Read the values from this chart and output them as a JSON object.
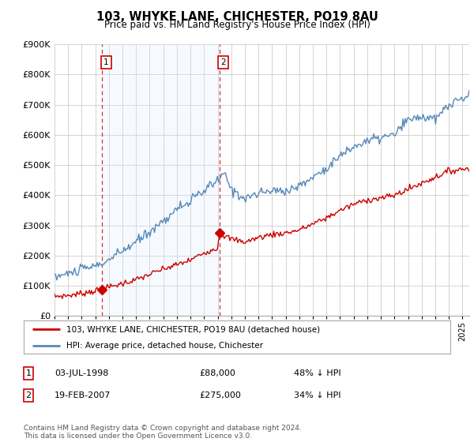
{
  "title": "103, WHYKE LANE, CHICHESTER, PO19 8AU",
  "subtitle": "Price paid vs. HM Land Registry's House Price Index (HPI)",
  "ylim": [
    0,
    900000
  ],
  "xlim_start": 1995.0,
  "xlim_end": 2025.5,
  "transaction1_x": 1998.5,
  "transaction1_y": 88000,
  "transaction1_label": "1",
  "transaction1_date": "03-JUL-1998",
  "transaction1_price": "£88,000",
  "transaction1_hpi": "48% ↓ HPI",
  "transaction2_x": 2007.12,
  "transaction2_y": 275000,
  "transaction2_label": "2",
  "transaction2_date": "19-FEB-2007",
  "transaction2_price": "£275,000",
  "transaction2_hpi": "34% ↓ HPI",
  "line1_color": "#cc0000",
  "line2_color": "#5588bb",
  "shade_color": "#ddeeff",
  "legend1_label": "103, WHYKE LANE, CHICHESTER, PO19 8AU (detached house)",
  "legend2_label": "HPI: Average price, detached house, Chichester",
  "footer": "Contains HM Land Registry data © Crown copyright and database right 2024.\nThis data is licensed under the Open Government Licence v3.0.",
  "background_color": "#ffffff",
  "grid_color": "#cccccc"
}
